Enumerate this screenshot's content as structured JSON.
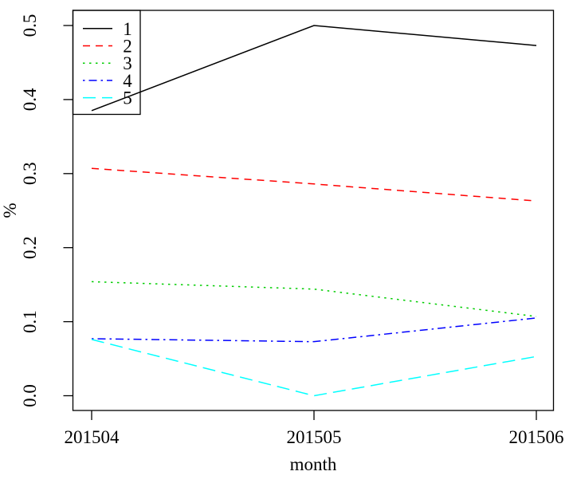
{
  "figure": {
    "background_color": "#ffffff",
    "axis_color": "#000000",
    "text_color": "#000000"
  },
  "chart_data": {
    "type": "line",
    "title": "",
    "xlabel": "month",
    "ylabel": "%",
    "categories": [
      "201504",
      "201505",
      "201506"
    ],
    "series": [
      {
        "name": "1",
        "color": "#000000",
        "linestyle": "solid",
        "values": [
          0.385,
          0.5,
          0.473
        ]
      },
      {
        "name": "2",
        "color": "#FF0000",
        "linestyle": "dashed",
        "values": [
          0.307,
          0.286,
          0.263
        ]
      },
      {
        "name": "3",
        "color": "#00CD00",
        "linestyle": "dotted",
        "values": [
          0.154,
          0.144,
          0.107
        ]
      },
      {
        "name": "4",
        "color": "#0000FF",
        "linestyle": "dashdot",
        "values": [
          0.077,
          0.073,
          0.105
        ]
      },
      {
        "name": "5",
        "color": "#00FFFF",
        "linestyle": "longdash",
        "values": [
          0.076,
          0.0,
          0.053
        ]
      }
    ],
    "y_tick_labels": [
      "0.0",
      "0.1",
      "0.2",
      "0.3",
      "0.4",
      "0.5"
    ],
    "y_ticks": [
      0.0,
      0.1,
      0.2,
      0.3,
      0.4,
      0.5
    ],
    "ylim": [
      0.0,
      0.5
    ],
    "grid": false,
    "legend": {
      "position": "top-left",
      "entries": [
        "1",
        "2",
        "3",
        "4",
        "5"
      ]
    }
  }
}
